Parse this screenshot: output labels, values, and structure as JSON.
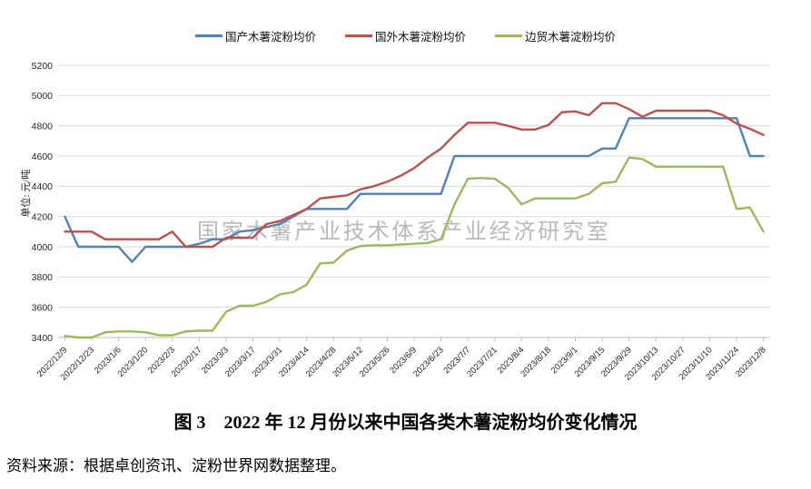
{
  "watermark": "国家木薯产业技术体系产业经济研究室",
  "title": "图 3　2022 年 12 月份以来中国各类木薯淀粉均价变化情况",
  "source": "资料来源：根据卓创资讯、淀粉世界网数据整理。",
  "y_axis": {
    "unit_label": "单位: 元/吨",
    "ticks": [
      "5200",
      "5000",
      "4800",
      "4600",
      "4400",
      "4200",
      "4000",
      "3800",
      "3600",
      "3400"
    ]
  },
  "x_axis": {
    "labels": [
      "2022/12/9",
      "2022/12/23",
      "2023/1/6",
      "2023/1/20",
      "2023/2/3",
      "2023/2/17",
      "2023/3/3",
      "2023/3/17",
      "2023/3/31",
      "2023/4/14",
      "2023/4/28",
      "2023/5/12",
      "2023/5/26",
      "2023/6/9",
      "2023/6/23",
      "2023/7/7",
      "2023/7/21",
      "2023/8/4",
      "2023/8/18",
      "2023/9/1",
      "2023/9/15",
      "2023/9/29",
      "2023/10/13",
      "2023/10/27",
      "2023/11/10",
      "2023/11/24",
      "2023/12/8"
    ]
  },
  "colors": {
    "domestic": "#4F81BD",
    "foreign": "#C0504D",
    "border_trade": "#9BBB59",
    "grid": "#d9d9d9",
    "axis": "#bfbfbf",
    "watermark": "#b9b9b9",
    "tick_text": "#262626"
  },
  "chart_data": {
    "type": "line",
    "title": "图 3　2022 年 12 月份以来中国各类木薯淀粉均价变化情况",
    "ylabel": "单位: 元/吨",
    "ylim": [
      3400,
      5200
    ],
    "ystep": 200,
    "grid": true,
    "legend_position": "top",
    "x": [
      "2022/12/9",
      "2022/12/16",
      "2022/12/23",
      "2022/12/30",
      "2023/1/6",
      "2023/1/13",
      "2023/1/20",
      "2023/1/27",
      "2023/2/3",
      "2023/2/10",
      "2023/2/17",
      "2023/2/24",
      "2023/3/3",
      "2023/3/10",
      "2023/3/17",
      "2023/3/24",
      "2023/3/31",
      "2023/4/7",
      "2023/4/14",
      "2023/4/21",
      "2023/4/28",
      "2023/5/5",
      "2023/5/12",
      "2023/5/19",
      "2023/5/26",
      "2023/6/2",
      "2023/6/9",
      "2023/6/16",
      "2023/6/23",
      "2023/6/30",
      "2023/7/7",
      "2023/7/14",
      "2023/7/21",
      "2023/7/28",
      "2023/8/4",
      "2023/8/11",
      "2023/8/18",
      "2023/8/25",
      "2023/9/1",
      "2023/9/8",
      "2023/9/15",
      "2023/9/22",
      "2023/9/29",
      "2023/10/6",
      "2023/10/13",
      "2023/10/20",
      "2023/10/27",
      "2023/11/3",
      "2023/11/10",
      "2023/11/17",
      "2023/11/24",
      "2023/12/1",
      "2023/12/8"
    ],
    "series": [
      {
        "name": "国产木薯淀粉均价",
        "color": "#4F81BD",
        "values": [
          4200,
          4000,
          4000,
          4000,
          4000,
          3900,
          4000,
          4000,
          4000,
          4000,
          4020,
          4050,
          4050,
          4100,
          4110,
          4130,
          4150,
          4200,
          4250,
          4250,
          4250,
          4250,
          4350,
          4350,
          4350,
          4350,
          4350,
          4350,
          4350,
          4600,
          4600,
          4600,
          4600,
          4600,
          4600,
          4600,
          4600,
          4600,
          4600,
          4600,
          4650,
          4650,
          4850,
          4850,
          4850,
          4850,
          4850,
          4850,
          4850,
          4850,
          4850,
          4600,
          4600
        ]
      },
      {
        "name": "国外木薯淀粉均价",
        "color": "#C0504D",
        "values": [
          4100,
          4100,
          4100,
          4050,
          4050,
          4050,
          4050,
          4050,
          4100,
          4000,
          4000,
          4000,
          4060,
          4060,
          4060,
          4150,
          4170,
          4210,
          4250,
          4320,
          4330,
          4340,
          4380,
          4400,
          4430,
          4470,
          4520,
          4590,
          4650,
          4740,
          4820,
          4820,
          4820,
          4800,
          4775,
          4775,
          4805,
          4890,
          4895,
          4870,
          4950,
          4950,
          4910,
          4860,
          4900,
          4900,
          4900,
          4900,
          4900,
          4870,
          4815,
          4780,
          4740
        ]
      },
      {
        "name": "边贸木薯淀粉均价",
        "color": "#9BBB59",
        "values": [
          3410,
          3400,
          3400,
          3435,
          3440,
          3440,
          3435,
          3415,
          3415,
          3440,
          3445,
          3445,
          3570,
          3610,
          3610,
          3635,
          3685,
          3700,
          3750,
          3890,
          3895,
          3975,
          4005,
          4010,
          4010,
          4015,
          4020,
          4025,
          4050,
          4280,
          4450,
          4455,
          4450,
          4390,
          4280,
          4320,
          4320,
          4320,
          4320,
          4350,
          4420,
          4430,
          4590,
          4580,
          4530,
          4530,
          4530,
          4530,
          4530,
          4530,
          4250,
          4260,
          4100
        ]
      }
    ]
  }
}
